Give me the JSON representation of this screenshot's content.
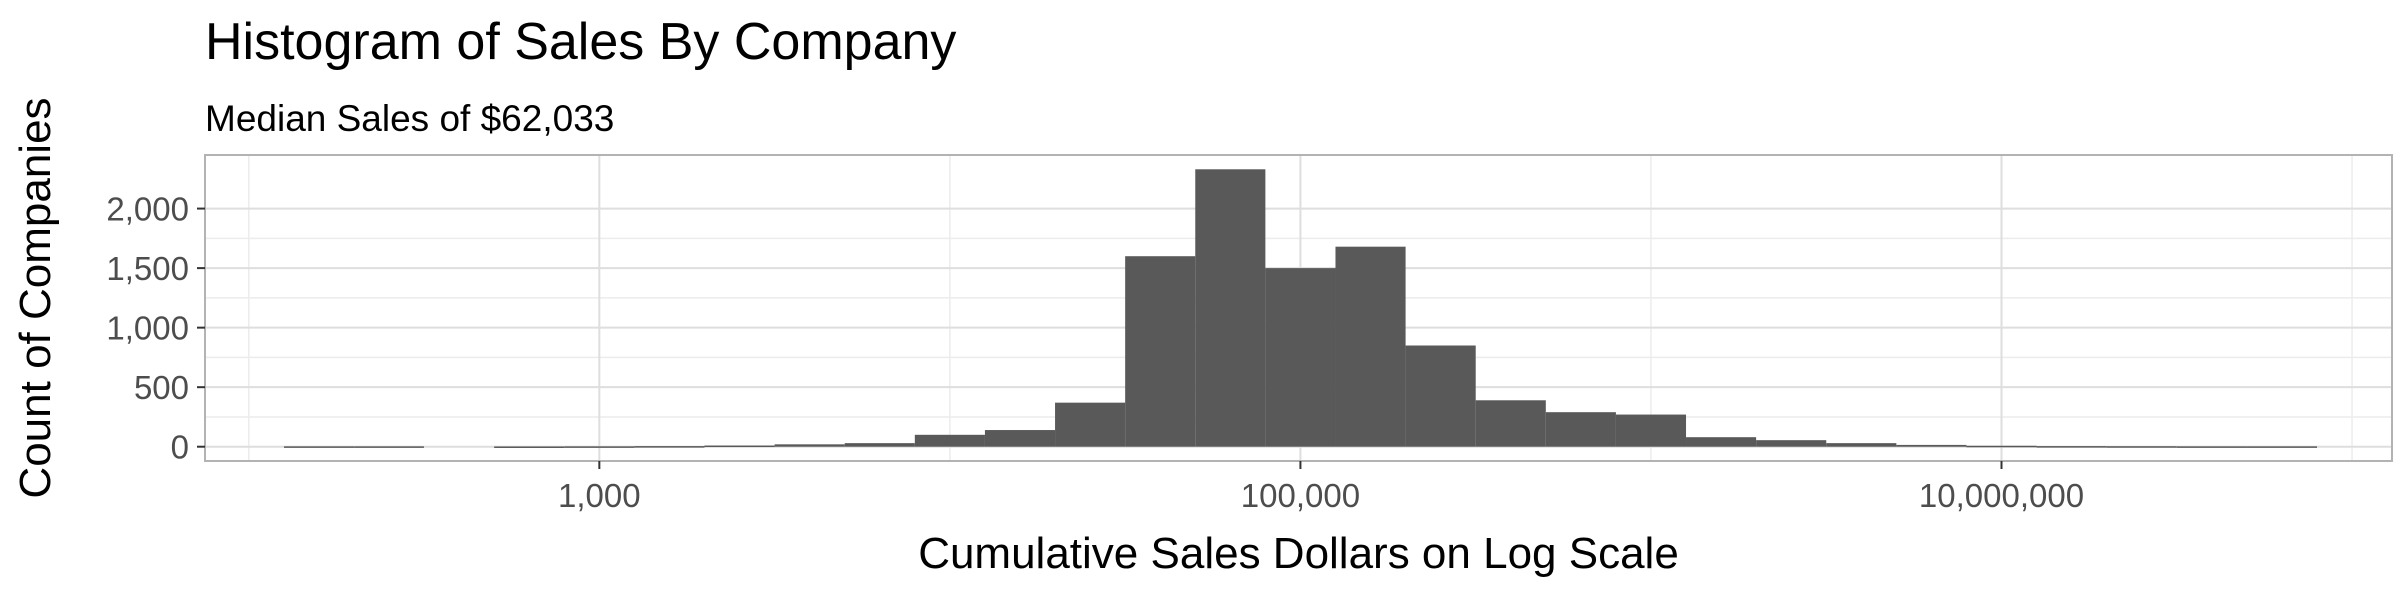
{
  "chart_data": {
    "type": "bar",
    "title": "Histogram of Sales By Company",
    "subtitle": "Median Sales of $62,033",
    "xlabel": "Cumulative Sales Dollars on Log Scale",
    "ylabel": "Count of Companies",
    "x_scale": "log10",
    "xlim": [
      75,
      130000000
    ],
    "ylim": [
      -120,
      2450
    ],
    "x_ticks": [
      1000,
      100000,
      10000000
    ],
    "x_tick_labels": [
      "1,000",
      "100,000",
      "10,000,000"
    ],
    "y_ticks": [
      0,
      500,
      1000,
      1500,
      2000
    ],
    "y_tick_labels": [
      "0",
      "500",
      "1,000",
      "1,500",
      "2,000"
    ],
    "grid": true,
    "bar_color": "#595959",
    "bins": [
      {
        "x_min": 126,
        "x_max": 200,
        "count": 3
      },
      {
        "x_min": 200,
        "x_max": 316,
        "count": 3
      },
      {
        "x_min": 501,
        "x_max": 794,
        "count": 2
      },
      {
        "x_min": 794,
        "x_max": 1259,
        "count": 3
      },
      {
        "x_min": 1259,
        "x_max": 1995,
        "count": 5
      },
      {
        "x_min": 1995,
        "x_max": 3162,
        "count": 10
      },
      {
        "x_min": 3162,
        "x_max": 5012,
        "count": 20
      },
      {
        "x_min": 5012,
        "x_max": 7943,
        "count": 30
      },
      {
        "x_min": 7943,
        "x_max": 12589,
        "count": 100
      },
      {
        "x_min": 12589,
        "x_max": 19953,
        "count": 140
      },
      {
        "x_min": 19953,
        "x_max": 31623,
        "count": 370
      },
      {
        "x_min": 31623,
        "x_max": 50119,
        "count": 1600
      },
      {
        "x_min": 50119,
        "x_max": 79433,
        "count": 2330
      },
      {
        "x_min": 79433,
        "x_max": 125893,
        "count": 1500
      },
      {
        "x_min": 125893,
        "x_max": 199526,
        "count": 1680
      },
      {
        "x_min": 199526,
        "x_max": 316228,
        "count": 850
      },
      {
        "x_min": 316228,
        "x_max": 501187,
        "count": 390
      },
      {
        "x_min": 501187,
        "x_max": 794328,
        "count": 290
      },
      {
        "x_min": 794328,
        "x_max": 1258925,
        "count": 270
      },
      {
        "x_min": 1258925,
        "x_max": 1995262,
        "count": 80
      },
      {
        "x_min": 1995262,
        "x_max": 3162278,
        "count": 55
      },
      {
        "x_min": 3162278,
        "x_max": 5011872,
        "count": 30
      },
      {
        "x_min": 5011872,
        "x_max": 7943282,
        "count": 15
      },
      {
        "x_min": 7943282,
        "x_max": 12589254,
        "count": 8
      },
      {
        "x_min": 12589254,
        "x_max": 19952623,
        "count": 5
      },
      {
        "x_min": 19952623,
        "x_max": 31622777,
        "count": 4
      },
      {
        "x_min": 31622777,
        "x_max": 50118723,
        "count": 3
      },
      {
        "x_min": 50118723,
        "x_max": 79432823,
        "count": 3
      }
    ]
  }
}
